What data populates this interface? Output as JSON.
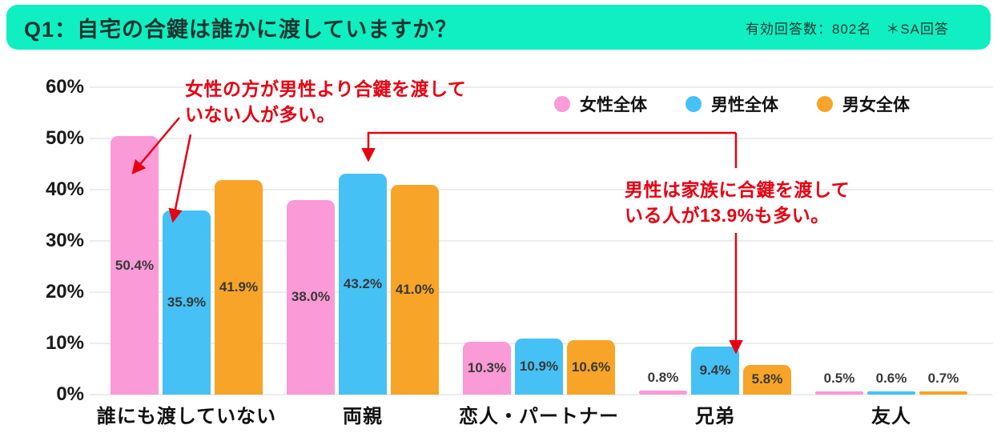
{
  "header": {
    "title": "Q1：自宅の合鍵は誰かに渡していますか？",
    "note": "有効回答数：802名　＊SA回答",
    "bg_color": "#0FEFC2",
    "text_color": "#1C352F"
  },
  "chart_data": {
    "type": "bar",
    "categories": [
      "誰にも渡していない",
      "両親",
      "恋人・パートナー",
      "兄弟",
      "友人"
    ],
    "series": [
      {
        "name": "女性全体",
        "color": "#FA9AD7",
        "values": [
          50.4,
          38.0,
          10.3,
          0.8,
          0.5
        ]
      },
      {
        "name": "男性全体",
        "color": "#46C1F5",
        "values": [
          35.9,
          43.2,
          10.9,
          9.4,
          0.6
        ]
      },
      {
        "name": "男女全体",
        "color": "#F7A428",
        "values": [
          41.9,
          41.0,
          10.6,
          5.8,
          0.7
        ]
      }
    ],
    "ylim": [
      0,
      60
    ],
    "ytick_step": 10,
    "ytick_labels": [
      "0%",
      "10%",
      "20%",
      "30%",
      "40%",
      "50%",
      "60%"
    ],
    "grid": true,
    "legend_position": "top-right",
    "value_label_suffix": "%"
  },
  "annotations": {
    "a1": {
      "line1": "女性の方が男性より合鍵を渡して",
      "line2": "いない人が多い。"
    },
    "a2": {
      "line1": "男性は家族に合鍵を渡して",
      "line2": "いる人が13.9%も多い。"
    },
    "color": "#E60012"
  }
}
